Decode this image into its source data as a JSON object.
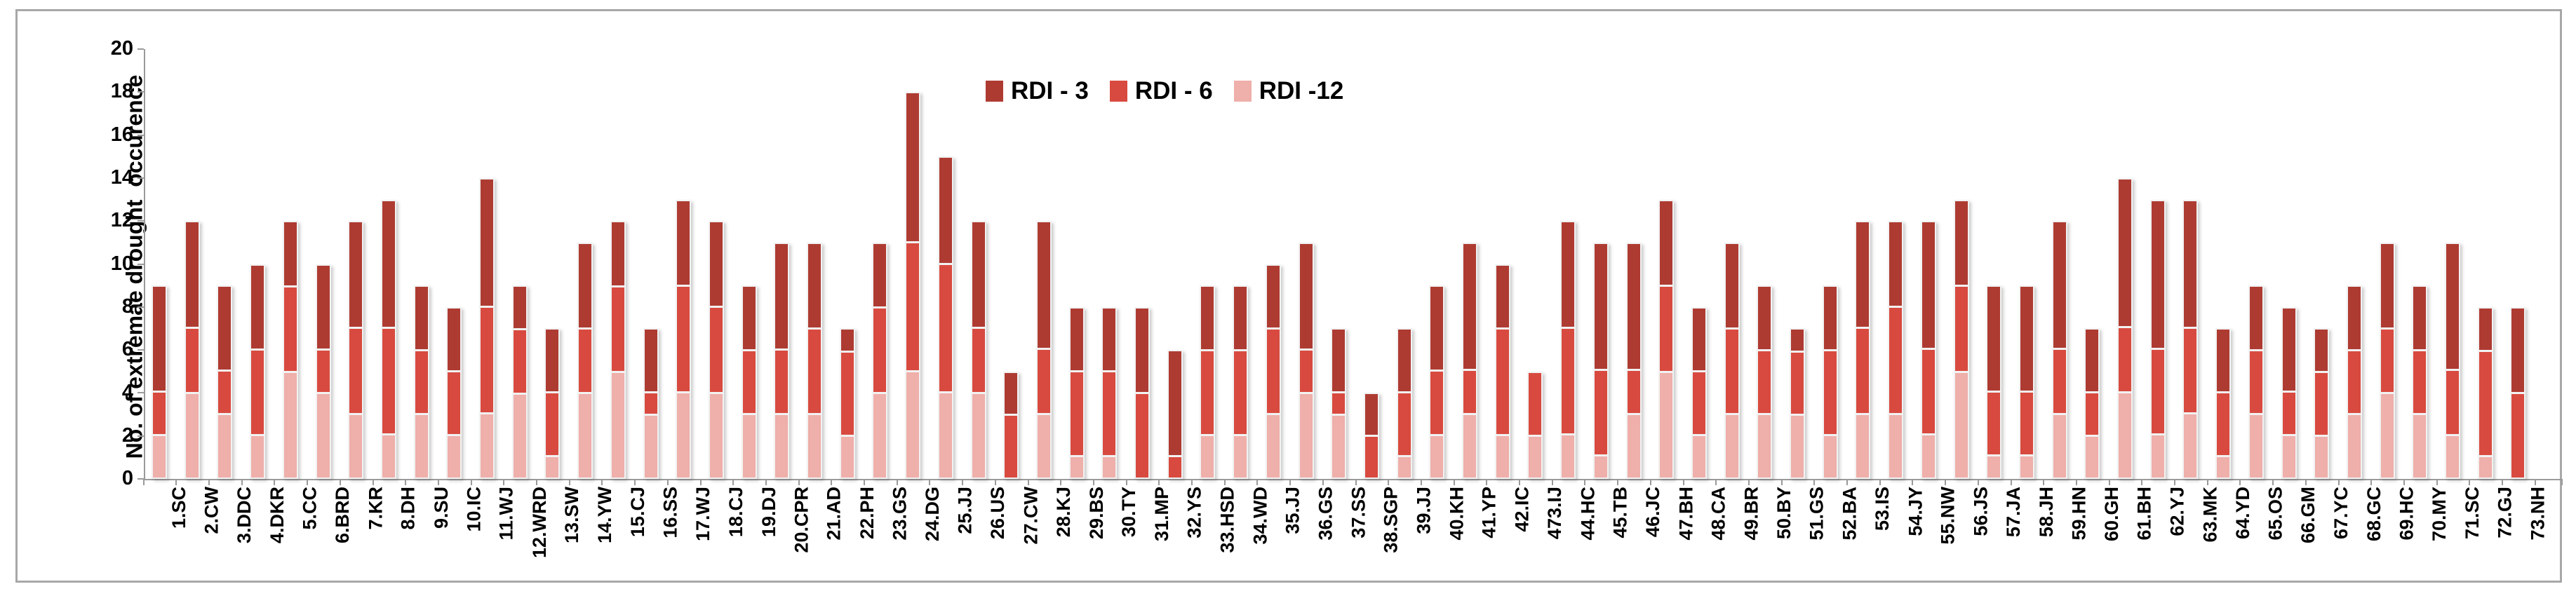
{
  "chart_data": {
    "type": "bar",
    "stacked": true,
    "title": "",
    "ylabel": "No. of extremae drought  occurence",
    "xlabel": "",
    "ylim": [
      0,
      20
    ],
    "ytick_step": 2,
    "grid": false,
    "legend_position": "top-center",
    "stack_order_bottom_to_top": [
      "RDI -12",
      "RDI - 6",
      "RDI - 3"
    ],
    "categories": [
      "1.SC",
      "2.CW",
      "3.DDC",
      "4.DKR",
      "5.CC",
      "6.BRD",
      "7.KR",
      "8.DH",
      "9.SU",
      "10.IC",
      "11.WJ",
      "12.WRD",
      "13.SW",
      "14.YW",
      "15.CJ",
      "16.SS",
      "17.WJ",
      "18.CJ",
      "19.DJ",
      "20.CPR",
      "21.AD",
      "22.PH",
      "23.GS",
      "24.DG",
      "25.JJ",
      "26.US",
      "27.CW",
      "28.KJ",
      "29.BS",
      "30.TY",
      "31.MP",
      "32.YS",
      "33.HSD",
      "34.WD",
      "35.JJ",
      "36.GS",
      "37.SS",
      "38.SGP",
      "39.JJ",
      "40.KH",
      "41.YP",
      "42.IC",
      "473.IJ",
      "44.HC",
      "45.TB",
      "46.JC",
      "47.BH",
      "48.CA",
      "49.BR",
      "50.BY",
      "51.GS",
      "52.BA",
      "53.IS",
      "54.JY",
      "55.NW",
      "56.JS",
      "57.JA",
      "58.JH",
      "59.HN",
      "60.GH",
      "61.BH",
      "62.YJ",
      "63.MK",
      "64.YD",
      "65.OS",
      "66.GM",
      "67.YC",
      "68.GC",
      "69.HC",
      "70.MY",
      "71.SC",
      "72.GJ",
      "73.NH"
    ],
    "series": [
      {
        "name": "RDI - 3",
        "color": "#AE3B32",
        "values": [
          5,
          5,
          4,
          4,
          3,
          4,
          5,
          6,
          3,
          3,
          6,
          2,
          3,
          4,
          3,
          3,
          4,
          4,
          3,
          5,
          4,
          1,
          3,
          7,
          5,
          5,
          2,
          6,
          3,
          3,
          4,
          5,
          3,
          3,
          3,
          5,
          3,
          2,
          3,
          4,
          6,
          3,
          0,
          5,
          6,
          6,
          4,
          3,
          4,
          3,
          1,
          3,
          5,
          4,
          6,
          4,
          5,
          5,
          6,
          3,
          7,
          7,
          6,
          3,
          3,
          4,
          2,
          3,
          4,
          3,
          6,
          2,
          4
        ]
      },
      {
        "name": "RDI - 6",
        "color": "#D84A3F",
        "values": [
          2,
          3,
          2,
          4,
          4,
          2,
          4,
          5,
          3,
          3,
          5,
          3,
          3,
          3,
          4,
          1,
          5,
          4,
          3,
          3,
          4,
          4,
          4,
          6,
          6,
          3,
          3,
          3,
          4,
          4,
          4,
          1,
          4,
          4,
          4,
          2,
          1,
          2,
          3,
          3,
          2,
          5,
          3,
          5,
          4,
          2,
          4,
          3,
          4,
          3,
          3,
          4,
          4,
          5,
          4,
          4,
          3,
          3,
          3,
          2,
          3,
          4,
          4,
          3,
          3,
          2,
          3,
          3,
          3,
          3,
          3,
          5,
          4
        ]
      },
      {
        "name": "RDI -12",
        "color": "#EFAFAA",
        "values": [
          2,
          4,
          3,
          2,
          5,
          4,
          3,
          2,
          3,
          2,
          3,
          4,
          1,
          4,
          5,
          3,
          4,
          4,
          3,
          3,
          3,
          2,
          4,
          5,
          4,
          4,
          0,
          3,
          1,
          1,
          0,
          0,
          2,
          2,
          3,
          4,
          3,
          0,
          1,
          2,
          3,
          2,
          2,
          2,
          1,
          3,
          5,
          2,
          3,
          3,
          3,
          2,
          3,
          3,
          2,
          5,
          1,
          1,
          3,
          2,
          4,
          2,
          3,
          1,
          3,
          2,
          2,
          3,
          4,
          3,
          2,
          1,
          0
        ]
      }
    ],
    "axis_color": "#9a9a9a",
    "frame_color": "#a8a8a8"
  }
}
